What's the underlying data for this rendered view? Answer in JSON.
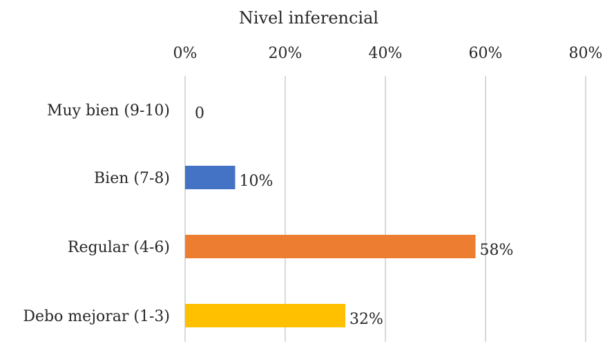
{
  "chart_data": {
    "type": "bar",
    "orientation": "horizontal",
    "title": "Nivel inferencial",
    "xlabel": "",
    "ylabel": "",
    "x_axis_position": "top",
    "xlim": [
      0,
      80
    ],
    "x_ticks": [
      0,
      20,
      40,
      60,
      80
    ],
    "x_tick_labels": [
      "0%",
      "20%",
      "40%",
      "60%",
      "80%"
    ],
    "grid": true,
    "legend": "none",
    "categories": [
      "Muy bien (9-10)",
      "Bien (7-8)",
      "Regular (4-6)",
      "Debo mejorar (1-3)"
    ],
    "values": [
      0,
      10,
      58,
      32
    ],
    "data_labels": [
      "0",
      "10%",
      "58%",
      "32%"
    ],
    "colors": [
      "#4472C4",
      "#4472C4",
      "#ED7D31",
      "#FFC000"
    ]
  }
}
